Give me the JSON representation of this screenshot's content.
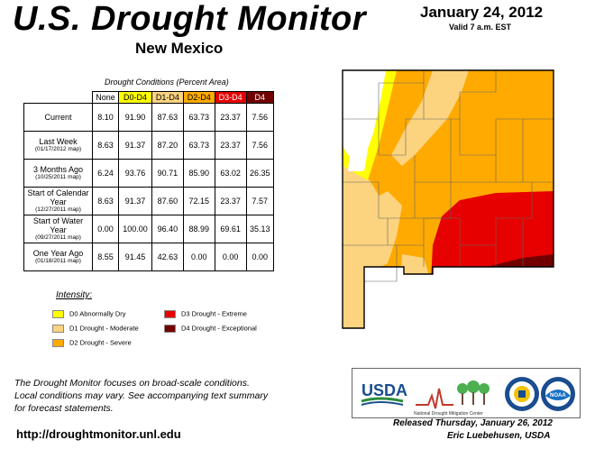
{
  "header": {
    "title": "U.S. Drought Monitor",
    "state": "New Mexico",
    "date": "January 24, 2012",
    "valid": "Valid 7 a.m. EST"
  },
  "table": {
    "caption": "Drought Conditions (Percent Area)",
    "columns": [
      "None",
      "D0-D4",
      "D1-D4",
      "D2-D4",
      "D3-D4",
      "D4"
    ],
    "rows": [
      {
        "label": "Current",
        "sub": "",
        "values": [
          "8.10",
          "91.90",
          "87.63",
          "63.73",
          "23.37",
          "7.56"
        ]
      },
      {
        "label": "Last Week",
        "sub": "(01/17/2012 map)",
        "values": [
          "8.63",
          "91.37",
          "87.20",
          "63.73",
          "23.37",
          "7.56"
        ]
      },
      {
        "label": "3 Months Ago",
        "sub": "(10/25/2011 map)",
        "values": [
          "6.24",
          "93.76",
          "90.71",
          "85.90",
          "63.02",
          "26.35"
        ]
      },
      {
        "label": "Start of Calendar Year",
        "sub": "(12/27/2011 map)",
        "values": [
          "8.63",
          "91.37",
          "87.60",
          "72.15",
          "23.37",
          "7.57"
        ]
      },
      {
        "label": "Start of Water Year",
        "sub": "(09/27/2011 map)",
        "values": [
          "0.00",
          "100.00",
          "96.40",
          "88.99",
          "69.61",
          "35.13"
        ]
      },
      {
        "label": "One Year Ago",
        "sub": "(01/18/2011 map)",
        "values": [
          "8.55",
          "91.45",
          "42.63",
          "0.00",
          "0.00",
          "0.00"
        ]
      }
    ]
  },
  "legend": {
    "title": "Intensity:",
    "items": [
      {
        "label": "D0 Abnormally Dry",
        "color": "#ffff00"
      },
      {
        "label": "D1 Drought - Moderate",
        "color": "#fcd37f"
      },
      {
        "label": "D2 Drought - Severe",
        "color": "#ffaa00"
      },
      {
        "label": "D3 Drought - Extreme",
        "color": "#e60000"
      },
      {
        "label": "D4 Drought - Exceptional",
        "color": "#730000"
      }
    ]
  },
  "footer": {
    "note_line1": "The Drought Monitor focuses on broad-scale conditions.",
    "note_line2": "Local conditions may vary. See accompanying text summary",
    "note_line3": "for forecast statements.",
    "website": "http://droughtmonitor.unl.edu",
    "released": "Released Thursday, January 26, 2012",
    "author": "Eric Luebehusen, USDA"
  },
  "logos": {
    "usda": "USDA",
    "ndmc": "National Drought Mitigation Center",
    "noaa": "NOAA"
  }
}
